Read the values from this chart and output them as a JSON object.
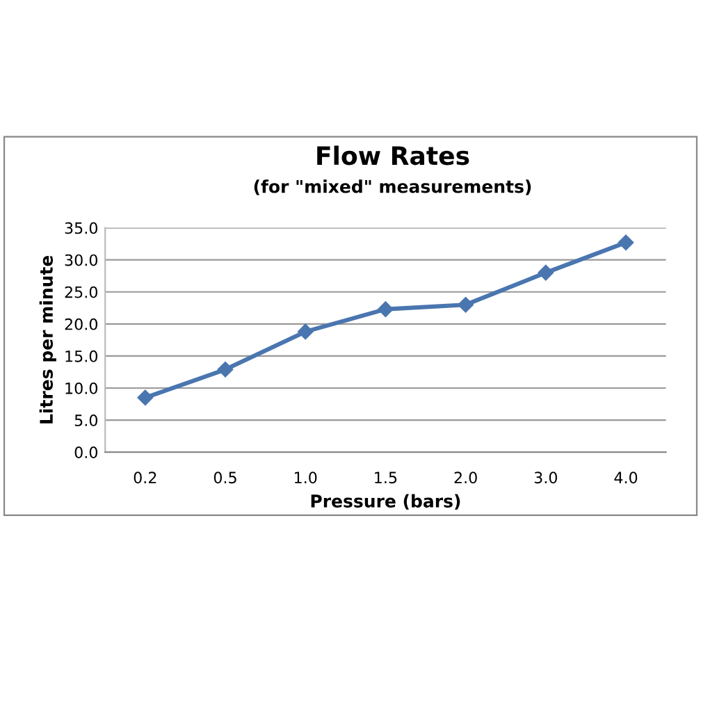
{
  "chart_data": {
    "type": "line",
    "title": "Flow Rates",
    "subtitle": "(for \"mixed\" measurements)",
    "xlabel": "Pressure (bars)",
    "ylabel": "Litres per minute",
    "categories": [
      "0.2",
      "0.5",
      "1.0",
      "1.5",
      "2.0",
      "3.0",
      "4.0"
    ],
    "series": [
      {
        "color": "#4a76b0",
        "values": [
          8.5,
          12.9,
          18.8,
          22.3,
          23.0,
          28.0,
          32.7
        ]
      }
    ],
    "ylim": [
      0,
      35
    ],
    "yticks": [
      {
        "value": 0,
        "label": "0.0"
      },
      {
        "value": 5,
        "label": "5.0"
      },
      {
        "value": 10,
        "label": "10.0"
      },
      {
        "value": 15,
        "label": "15.0"
      },
      {
        "value": 20,
        "label": "20.0"
      },
      {
        "value": 25,
        "label": "25.0"
      },
      {
        "value": 30,
        "label": "30.0"
      },
      {
        "value": 35,
        "label": "35.0"
      }
    ],
    "grid": "y",
    "marker": "diamond",
    "line_style": "solid",
    "legend": false
  }
}
